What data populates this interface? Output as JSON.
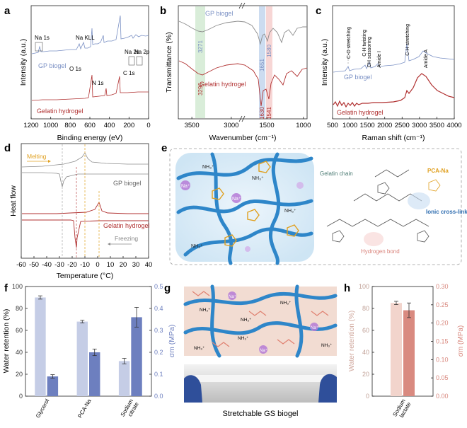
{
  "panels": [
    {
      "letter": "a"
    },
    {
      "letter": "b"
    },
    {
      "letter": "c"
    },
    {
      "letter": "d"
    },
    {
      "letter": "e"
    },
    {
      "letter": "f"
    },
    {
      "letter": "g"
    },
    {
      "letter": "h"
    }
  ],
  "chart_data": [
    {
      "id": "a",
      "type": "line",
      "title": "",
      "xlabel": "Binding energy (eV)",
      "ylabel": "Intensity (a.u.)",
      "xlim": [
        1200,
        0
      ],
      "xticks": [
        1200,
        1000,
        800,
        600,
        400,
        200,
        0
      ],
      "series": [
        {
          "name": "GP biogel",
          "color": "#7a90c4"
        },
        {
          "name": "Gelatin hydrogel",
          "color": "#b03030"
        }
      ],
      "annotations": [
        "Na 1s",
        "Na KLL",
        "O 1s",
        "N 1s",
        "C 1s",
        "Na 2s",
        "Na 2p"
      ]
    },
    {
      "id": "b",
      "type": "line",
      "title": "",
      "xlabel": "Wavenumber (cm⁻¹)",
      "ylabel": "Transmittance (%)",
      "xticks": [
        3500,
        3000,
        1500,
        1000
      ],
      "series": [
        {
          "name": "GP biogel",
          "color": "#7a90c4"
        },
        {
          "name": "Gelatin hydrogel",
          "color": "#b03030"
        }
      ],
      "annotations": [
        "3271",
        "3296",
        "1651",
        "1630",
        "1580",
        "1541"
      ]
    },
    {
      "id": "c",
      "type": "line",
      "title": "",
      "xlabel": "Raman shift (cm⁻¹)",
      "ylabel": "Intensity (a.u.)",
      "xlim": [
        500,
        4000
      ],
      "xticks": [
        500,
        1000,
        1500,
        2000,
        2500,
        3000,
        3500,
        4000
      ],
      "series": [
        {
          "name": "GP biogel",
          "color": "#7a90c4"
        },
        {
          "name": "Gelatin hydrogel",
          "color": "#b03030"
        }
      ],
      "annotations": [
        "C-O stretching",
        "C-H twisting",
        "CH scissoring",
        "Amide I",
        "C-H stretching",
        "Amide A"
      ]
    },
    {
      "id": "d",
      "type": "line",
      "title": "",
      "xlabel": "Temperature (°C)",
      "ylabel": "Heat flow",
      "xlim": [
        -60,
        40
      ],
      "xticks": [
        -60,
        -50,
        -40,
        -30,
        -20,
        -10,
        0,
        10,
        20,
        30,
        40
      ],
      "series": [
        {
          "name": "GP biogel",
          "color": "#8c8c8c"
        },
        {
          "name": "Gelatin hydrogel",
          "color": "#b03030"
        }
      ],
      "annotations": [
        "Melting",
        "Freezing"
      ]
    },
    {
      "id": "f",
      "type": "bar",
      "title": "",
      "categories": [
        "Glycerol",
        "PCA-Na",
        "Sodium citrate"
      ],
      "xlabel": "",
      "ylabel": "Water retention (%)",
      "y2label": "σm (MPa)",
      "ylim": [
        0,
        100
      ],
      "y2lim": [
        0,
        0.5
      ],
      "yticks": [
        0,
        20,
        40,
        60,
        80,
        100
      ],
      "y2ticks": [
        0.0,
        0.1,
        0.2,
        0.3,
        0.4,
        0.5
      ],
      "series": [
        {
          "name": "Water retention (%)",
          "axis": "left",
          "color": "#c5cde6",
          "values": [
            90,
            68,
            32
          ],
          "errors": [
            1.5,
            1.2,
            2.5
          ]
        },
        {
          "name": "σm (MPa)",
          "axis": "right",
          "color": "#6d7fbf",
          "values": [
            0.09,
            0.2,
            0.36
          ],
          "errors": [
            0.008,
            0.015,
            0.045
          ]
        }
      ]
    },
    {
      "id": "h",
      "type": "bar",
      "title": "",
      "categories": [
        "Sodium lactate"
      ],
      "xlabel": "",
      "ylabel": "Water retention (%)",
      "y2label": "σm (MPa)",
      "ylim": [
        0,
        100
      ],
      "y2lim": [
        0,
        0.3
      ],
      "yticks": [
        0,
        20,
        40,
        60,
        80,
        100
      ],
      "y2ticks": [
        0.0,
        0.05,
        0.1,
        0.15,
        0.2,
        0.25,
        0.3
      ],
      "series": [
        {
          "name": "Water retention (%)",
          "axis": "left",
          "color": "#f2d4cc",
          "values": [
            85
          ],
          "errors": [
            1.5
          ]
        },
        {
          "name": "σm (MPa)",
          "axis": "right",
          "color": "#d98a80",
          "values": [
            0.235
          ],
          "errors": [
            0.02
          ]
        }
      ]
    }
  ],
  "schematic_e": {
    "labels": [
      "Na⁺",
      "Na⁺",
      "NH₃⁺",
      "NH₃⁺",
      "NH₃⁺",
      "NH₃⁺",
      "Gelatin chain",
      "PCA-Na",
      "Ionic cross-link",
      "Hydrogen bond"
    ]
  },
  "schematic_g": {
    "labels": [
      "NH₃⁺",
      "NH₃⁺",
      "NH₃⁺",
      "NH₃⁺",
      "NH₃⁺",
      "NH₃⁺",
      "Na⁺",
      "Na⁺",
      "Na⁺"
    ],
    "caption": "Stretchable GS biogel"
  },
  "colors": {
    "gp": "#7a90c4",
    "gelatin": "#b03030",
    "grey": "#8c8c8c",
    "pcana": "#e0a020",
    "accent_blue": "#2f6db0"
  }
}
